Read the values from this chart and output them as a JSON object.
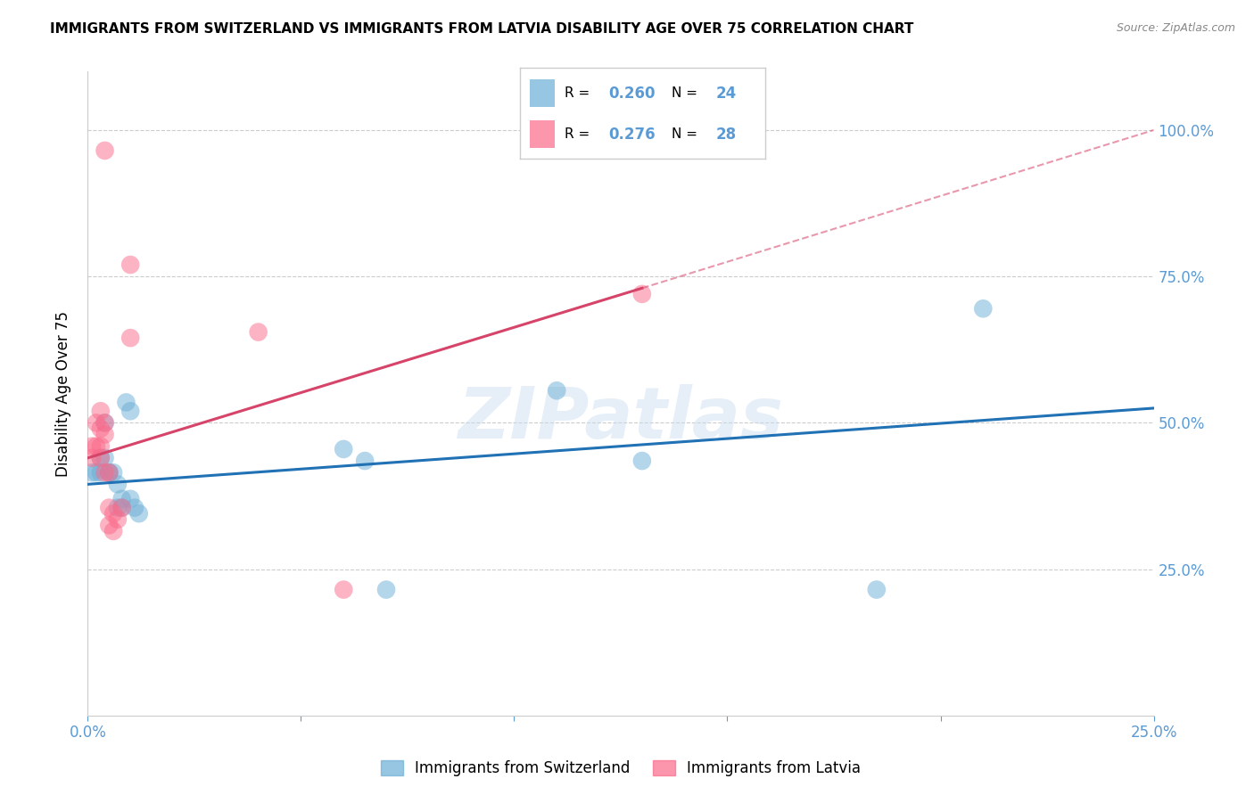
{
  "title": "IMMIGRANTS FROM SWITZERLAND VS IMMIGRANTS FROM LATVIA DISABILITY AGE OVER 75 CORRELATION CHART",
  "source": "Source: ZipAtlas.com",
  "ylabel": "Disability Age Over 75",
  "watermark": "ZIPatlas",
  "xlim": [
    0.0,
    0.25
  ],
  "ylim": [
    0.0,
    1.1
  ],
  "xticks": [
    0.0,
    0.05,
    0.1,
    0.15,
    0.2,
    0.25
  ],
  "xtick_labels": [
    "0.0%",
    "",
    "",
    "",
    "",
    "25.0%"
  ],
  "yticks": [
    0.25,
    0.5,
    0.75,
    1.0
  ],
  "ytick_labels": [
    "25.0%",
    "50.0%",
    "75.0%",
    "100.0%"
  ],
  "legend_label1": "Immigrants from Switzerland",
  "legend_label2": "Immigrants from Latvia",
  "blue_color": "#6baed6",
  "pink_color": "#fb6a8a",
  "scatter_blue": [
    [
      0.001,
      0.415
    ],
    [
      0.002,
      0.415
    ],
    [
      0.003,
      0.44
    ],
    [
      0.003,
      0.415
    ],
    [
      0.004,
      0.5
    ],
    [
      0.004,
      0.44
    ],
    [
      0.005,
      0.415
    ],
    [
      0.005,
      0.415
    ],
    [
      0.006,
      0.415
    ],
    [
      0.007,
      0.395
    ],
    [
      0.007,
      0.355
    ],
    [
      0.008,
      0.37
    ],
    [
      0.008,
      0.355
    ],
    [
      0.009,
      0.535
    ],
    [
      0.01,
      0.52
    ],
    [
      0.01,
      0.37
    ],
    [
      0.011,
      0.355
    ],
    [
      0.012,
      0.345
    ],
    [
      0.06,
      0.455
    ],
    [
      0.065,
      0.435
    ],
    [
      0.11,
      0.555
    ],
    [
      0.13,
      0.435
    ],
    [
      0.21,
      0.695
    ],
    [
      0.185,
      0.215
    ],
    [
      0.07,
      0.215
    ]
  ],
  "scatter_pink": [
    [
      0.001,
      0.44
    ],
    [
      0.001,
      0.46
    ],
    [
      0.002,
      0.5
    ],
    [
      0.002,
      0.46
    ],
    [
      0.003,
      0.52
    ],
    [
      0.003,
      0.49
    ],
    [
      0.003,
      0.46
    ],
    [
      0.003,
      0.44
    ],
    [
      0.004,
      0.5
    ],
    [
      0.004,
      0.48
    ],
    [
      0.004,
      0.415
    ],
    [
      0.005,
      0.415
    ],
    [
      0.005,
      0.355
    ],
    [
      0.005,
      0.325
    ],
    [
      0.006,
      0.345
    ],
    [
      0.006,
      0.315
    ],
    [
      0.007,
      0.335
    ],
    [
      0.008,
      0.355
    ],
    [
      0.01,
      0.77
    ],
    [
      0.01,
      0.645
    ],
    [
      0.004,
      0.965
    ],
    [
      0.04,
      0.655
    ],
    [
      0.13,
      0.72
    ],
    [
      0.06,
      0.215
    ]
  ],
  "blue_line": {
    "x0": 0.0,
    "y0": 0.395,
    "x1": 0.25,
    "y1": 0.525
  },
  "pink_solid_line": {
    "x0": 0.0,
    "y0": 0.44,
    "x1": 0.13,
    "y1": 0.73
  },
  "pink_dashed_line": {
    "x0": 0.13,
    "y0": 0.73,
    "x1": 0.25,
    "y1": 1.0
  },
  "grid_color": "#cccccc",
  "tick_color": "#5b9bd5",
  "blue_line_color": "#2171b5",
  "pink_line_color": "#d6446a"
}
